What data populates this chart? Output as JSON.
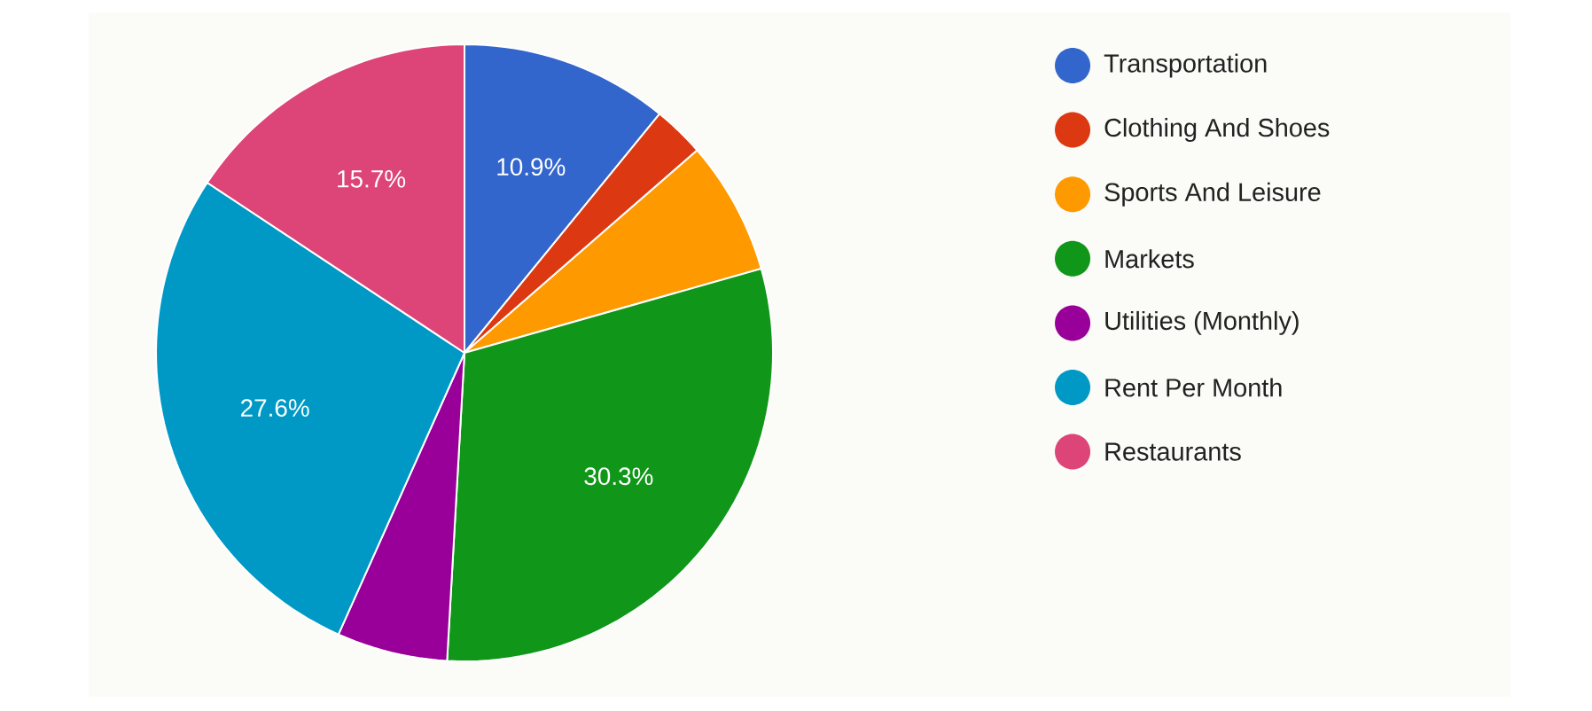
{
  "chart_data": {
    "type": "pie",
    "categories": [
      "Transportation",
      "Clothing And Shoes",
      "Sports And Leisure",
      "Markets",
      "Utilities (Monthly)",
      "Rent Per Month",
      "Restaurants"
    ],
    "values": [
      10.9,
      2.7,
      7.0,
      30.3,
      5.8,
      27.6,
      15.7
    ],
    "colors": [
      "#3366cc",
      "#dc3912",
      "#ff9900",
      "#109618",
      "#990099",
      "#0099c6",
      "#dd4477"
    ],
    "value_labels": [
      "10.9%",
      null,
      null,
      "30.3%",
      null,
      "27.6%",
      "15.7%"
    ],
    "legend": "right"
  }
}
